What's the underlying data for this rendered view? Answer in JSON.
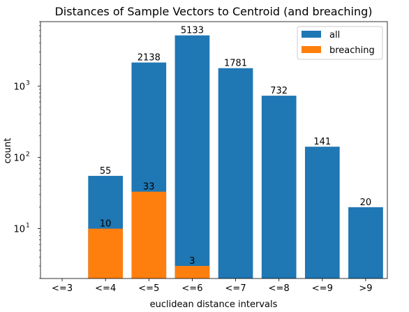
{
  "chart_data": {
    "type": "bar",
    "title": "Distances of Sample Vectors to Centroid (and breaching)",
    "xlabel": "euclidean distance intervals",
    "ylabel": "count",
    "yscale": "log",
    "ylim": [
      2,
      8000
    ],
    "categories": [
      "<=3",
      "<=4",
      "<=5",
      "<=6",
      "<=7",
      "<=8",
      "<=9",
      ">9"
    ],
    "series": [
      {
        "name": "all",
        "color": "#1f77b4",
        "values": [
          null,
          55,
          2138,
          5133,
          1781,
          732,
          141,
          20
        ]
      },
      {
        "name": "breaching",
        "color": "#ff7f0e",
        "values": [
          null,
          10,
          33,
          3,
          null,
          null,
          null,
          null
        ]
      }
    ],
    "yticks": [
      {
        "value": 10,
        "base": "10",
        "exp": "1"
      },
      {
        "value": 100,
        "base": "10",
        "exp": "2"
      },
      {
        "value": 1000,
        "base": "10",
        "exp": "3"
      }
    ],
    "legend": {
      "position": "top-right",
      "entries": [
        "all",
        "breaching"
      ]
    },
    "grid": false
  }
}
